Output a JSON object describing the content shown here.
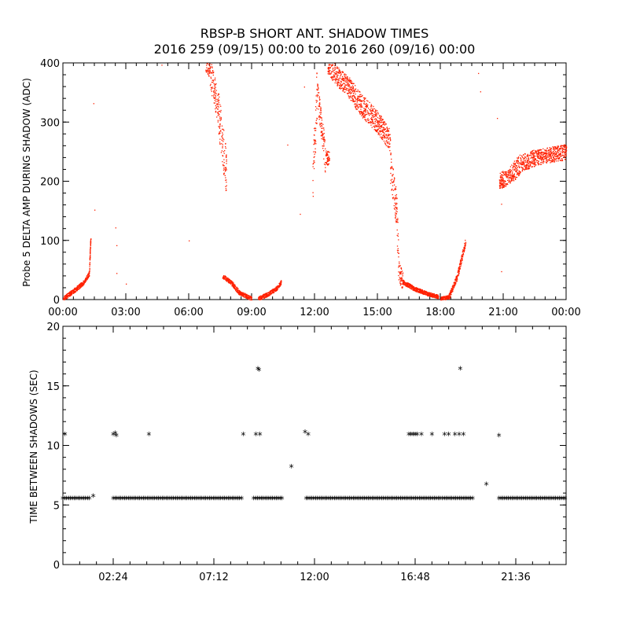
{
  "title": "RBSP-B SHORT ANT. SHADOW TIMES",
  "subtitle": "2016 259 (09/15) 00:00 to 2016 260 (09/16) 00:00",
  "colors": {
    "points_top": "#ff2000",
    "points_bottom": "#000000",
    "axes": "#000000"
  },
  "chart_data": [
    {
      "type": "scatter",
      "ylabel": "Probe 5 DELTA AMP DURING SHADOW (ADC)",
      "xlabel": "",
      "xlim_hours": [
        0,
        24
      ],
      "ylim": [
        0,
        400
      ],
      "x_tick_labels": [
        "00:00",
        "03:00",
        "06:00",
        "09:00",
        "12:00",
        "15:00",
        "18:00",
        "21:00",
        "00:00"
      ],
      "y_tick_labels": [
        "0",
        "100",
        "200",
        "300",
        "400"
      ],
      "y_ticks": [
        0,
        100,
        200,
        300,
        400
      ],
      "marker": "dot",
      "color": "#ff2000",
      "segments_hours_adc": [
        {
          "x": [
            0.0,
            0.5,
            1.0,
            1.25
          ],
          "y": [
            2,
            15,
            30,
            45
          ]
        },
        {
          "x": [
            1.25,
            1.28,
            1.32
          ],
          "y": [
            50,
            80,
            110
          ]
        },
        {
          "x": [
            6.8,
            7.0,
            7.4,
            7.8
          ],
          "y": [
            400,
            390,
            320,
            210
          ]
        },
        {
          "x": [
            7.6,
            8.0,
            8.4,
            9.0
          ],
          "y": [
            40,
            30,
            12,
            2
          ]
        },
        {
          "x": [
            9.3,
            9.8,
            10.2,
            10.4
          ],
          "y": [
            2,
            10,
            20,
            30
          ]
        },
        {
          "x": [
            11.9,
            12.1,
            12.3,
            12.5,
            12.7
          ],
          "y": [
            200,
            350,
            300,
            240,
            240
          ]
        },
        {
          "x": [
            12.6,
            13.0,
            13.6,
            14.2,
            15.0,
            15.6
          ],
          "y": [
            400,
            380,
            360,
            330,
            300,
            270
          ]
        },
        {
          "x": [
            15.6,
            15.9,
            16.0,
            16.2
          ],
          "y": [
            230,
            150,
            50,
            30
          ]
        },
        {
          "x": [
            16.2,
            16.8,
            17.4,
            17.9
          ],
          "y": [
            30,
            18,
            10,
            5
          ]
        },
        {
          "x": [
            18.0,
            18.4,
            18.8,
            19.2
          ],
          "y": [
            2,
            5,
            40,
            100
          ]
        },
        {
          "x": [
            20.8,
            21.3,
            21.8,
            22.5,
            23.2,
            24.0
          ],
          "y": [
            200,
            210,
            230,
            240,
            245,
            250
          ]
        }
      ],
      "scatter_points": [
        [
          1.45,
          332
        ],
        [
          1.5,
          152
        ],
        [
          2.5,
          122
        ],
        [
          2.55,
          92
        ],
        [
          2.55,
          45
        ],
        [
          3.0,
          27
        ],
        [
          4.7,
          397
        ],
        [
          6.0,
          100
        ],
        [
          10.7,
          262
        ],
        [
          11.3,
          145
        ],
        [
          11.5,
          360
        ],
        [
          19.8,
          383
        ],
        [
          19.9,
          352
        ],
        [
          20.9,
          162
        ],
        [
          20.7,
          307
        ],
        [
          20.9,
          48
        ]
      ]
    },
    {
      "type": "scatter",
      "ylabel": "TIME BETWEEN SHADOWS (SEC)",
      "xlabel": "",
      "xlim_hours": [
        0,
        24
      ],
      "ylim": [
        0,
        20
      ],
      "x_ticks_hours": [
        2.4,
        7.2,
        12.0,
        16.8,
        21.6
      ],
      "x_tick_labels": [
        "02:24",
        "07:12",
        "12:00",
        "16:48",
        "21:36"
      ],
      "y_ticks": [
        0,
        5,
        10,
        15,
        20
      ],
      "y_tick_labels": [
        "0",
        "5",
        "10",
        "15",
        "20"
      ],
      "marker": "asterisk",
      "color": "#000000",
      "baseline_value": 5.5,
      "baseline_ranges_hours": [
        [
          0.0,
          1.3
        ],
        [
          2.4,
          8.6
        ],
        [
          9.1,
          10.5
        ],
        [
          11.6,
          18.0
        ],
        [
          18.1,
          19.6
        ],
        [
          20.8,
          24.0
        ]
      ],
      "points": [
        [
          0.1,
          10.9
        ],
        [
          1.45,
          5.7
        ],
        [
          2.4,
          10.9
        ],
        [
          2.5,
          11.0
        ],
        [
          2.55,
          10.8
        ],
        [
          4.1,
          10.9
        ],
        [
          8.6,
          10.9
        ],
        [
          9.2,
          10.9
        ],
        [
          9.3,
          16.4
        ],
        [
          9.35,
          16.3
        ],
        [
          9.4,
          10.9
        ],
        [
          10.9,
          8.2
        ],
        [
          11.55,
          11.1
        ],
        [
          11.7,
          10.9
        ],
        [
          16.5,
          10.9
        ],
        [
          16.6,
          10.9
        ],
        [
          16.7,
          10.9
        ],
        [
          16.8,
          10.9
        ],
        [
          16.9,
          10.9
        ],
        [
          17.1,
          10.9
        ],
        [
          17.6,
          10.9
        ],
        [
          18.2,
          10.9
        ],
        [
          18.4,
          10.9
        ],
        [
          18.7,
          10.9
        ],
        [
          18.9,
          10.9
        ],
        [
          18.95,
          16.4
        ],
        [
          19.1,
          10.9
        ],
        [
          20.2,
          6.7
        ],
        [
          20.8,
          10.8
        ]
      ]
    }
  ]
}
